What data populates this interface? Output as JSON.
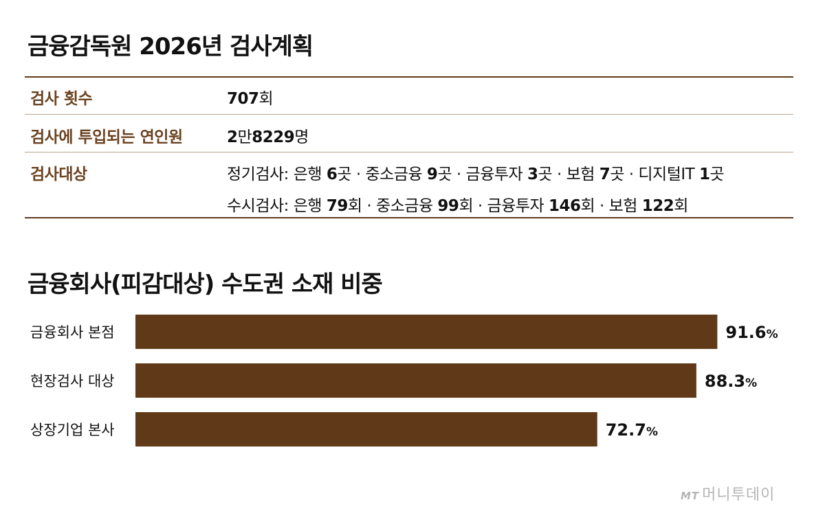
{
  "plan": {
    "title": "금융감독원 2026년 검사계획",
    "rows": {
      "count": {
        "label": "검사 횟수",
        "value": "707",
        "unit": "회"
      },
      "staff": {
        "label": "검사에 투입되는 연인원",
        "value_a": "2",
        "unit_a": "만",
        "value_b": "8229",
        "unit_b": "명"
      },
      "targets": {
        "label": "검사대상",
        "regular": {
          "prefix": "정기검사:",
          "items": [
            {
              "name": "은행",
              "num": "6",
              "unit": "곳"
            },
            {
              "name": "중소금융",
              "num": "9",
              "unit": "곳"
            },
            {
              "name": "금융투자",
              "num": "3",
              "unit": "곳"
            },
            {
              "name": "보험",
              "num": "7",
              "unit": "곳"
            },
            {
              "name": "디지털IT",
              "num": "1",
              "unit": "곳"
            }
          ]
        },
        "occasional": {
          "prefix": "수시검사:",
          "items": [
            {
              "name": "은행",
              "num": "79",
              "unit": "회"
            },
            {
              "name": "중소금융",
              "num": "99",
              "unit": "회"
            },
            {
              "name": "금융투자",
              "num": "146",
              "unit": "회"
            },
            {
              "name": "보험",
              "num": "122",
              "unit": "회"
            }
          ]
        }
      }
    },
    "separator": "·"
  },
  "chart_data": {
    "type": "bar",
    "orientation": "horizontal",
    "title": "금융회사(피감대상) 수도권 소재 비중",
    "categories": [
      "금융회사 본점",
      "현장검사 대상",
      "상장기업 본사"
    ],
    "values": [
      91.6,
      88.3,
      72.7
    ],
    "value_labels": [
      "91.6",
      "88.3",
      "72.7"
    ],
    "unit": "%",
    "xlim": [
      0,
      100
    ],
    "bar_color": "#603a18",
    "grid": false,
    "legend": "none"
  },
  "brand": {
    "mark": "MT",
    "name": "머니투데이"
  }
}
